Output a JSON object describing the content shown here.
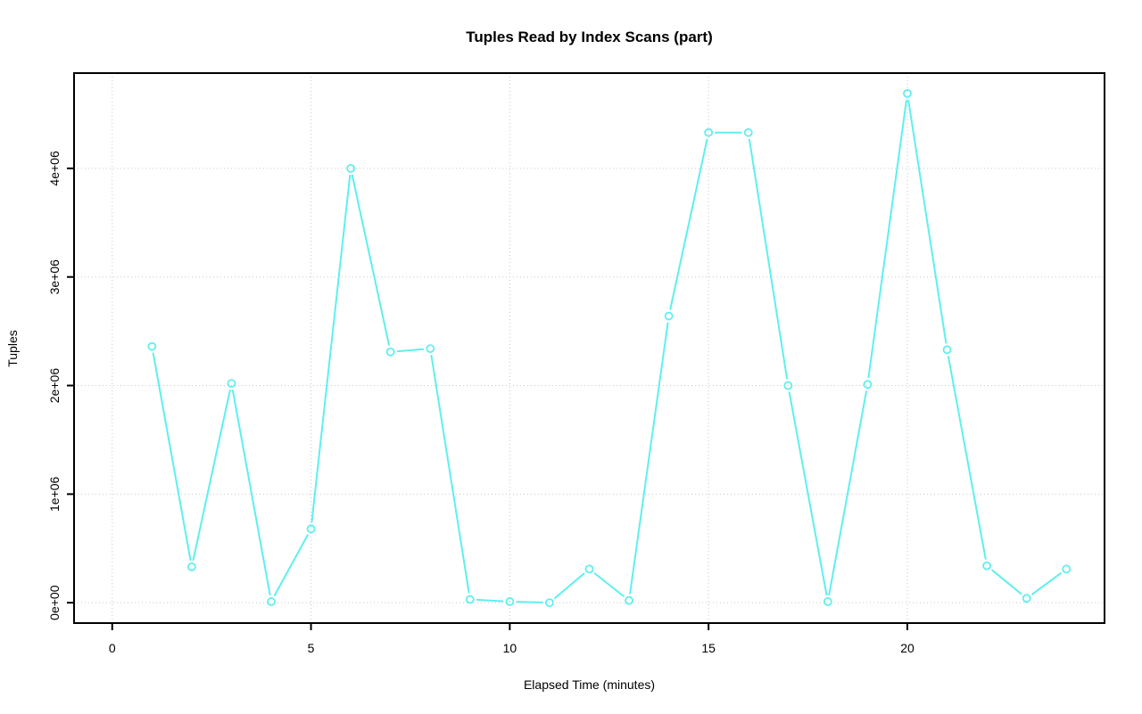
{
  "title": "Tuples Read by Index Scans (part)",
  "chart_data": {
    "type": "line",
    "title": "Tuples Read by Index Scans (part)",
    "xlabel": "Elapsed Time (minutes)",
    "ylabel": "Tuples",
    "x": [
      1,
      2,
      3,
      4,
      5,
      6,
      7,
      8,
      9,
      10,
      11,
      12,
      13,
      14,
      15,
      16,
      17,
      18,
      19,
      20,
      21,
      22,
      23,
      24
    ],
    "y": [
      2360000,
      330000,
      2020000,
      10000,
      680000,
      4000000,
      2310000,
      2340000,
      30000,
      10000,
      0,
      310000,
      20000,
      2640000,
      4330000,
      4330000,
      2000000,
      10000,
      2010000,
      4690000,
      2330000,
      340000,
      40000,
      310000
    ],
    "x_ticks": [
      0,
      5,
      10,
      15,
      20
    ],
    "x_tick_labels": [
      "0",
      "5",
      "10",
      "15",
      "20"
    ],
    "y_ticks": [
      0,
      1000000,
      2000000,
      3000000,
      4000000
    ],
    "y_tick_labels": [
      "0e+00",
      "1e+06",
      "2e+06",
      "3e+06",
      "4e+06"
    ],
    "xlim": [
      0,
      24
    ],
    "ylim": [
      0,
      4690000
    ],
    "axis_expansion": 0.04,
    "grid": "dotted",
    "legend_position": "none",
    "marker": "open-circle",
    "line_style": "segments-with-gaps",
    "colors": {
      "line": "#5FEFEF",
      "marker": "#5FEFEF",
      "grid": "#c8c8c8",
      "axis": "#000000",
      "text": "#000000",
      "background": "#ffffff"
    }
  }
}
